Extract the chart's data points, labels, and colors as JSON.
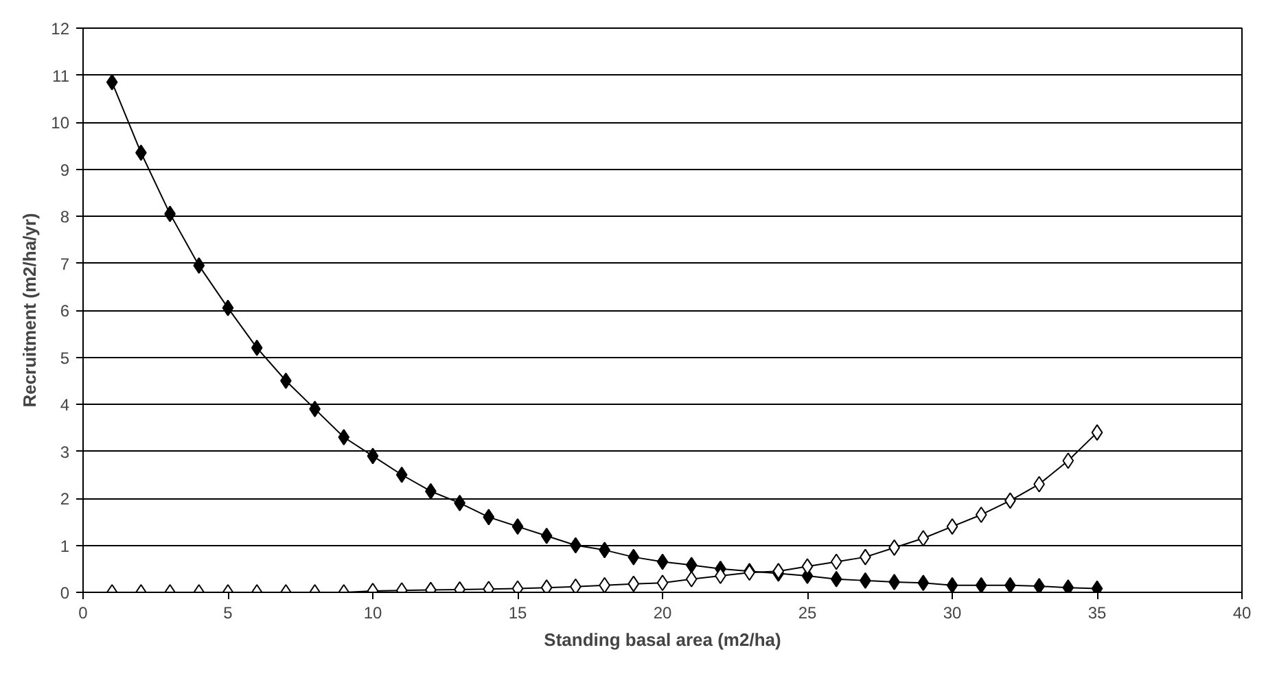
{
  "chart_data": {
    "type": "line",
    "xlabel": "Standing basal area (m2/ha)",
    "ylabel": "Recruitment (m2/ha/yr)",
    "x": [
      1,
      2,
      3,
      4,
      5,
      6,
      7,
      8,
      9,
      10,
      11,
      12,
      13,
      14,
      15,
      16,
      17,
      18,
      19,
      20,
      21,
      22,
      23,
      24,
      25,
      26,
      27,
      28,
      29,
      30,
      31,
      32,
      33,
      34,
      35
    ],
    "series": [
      {
        "color": "#000000",
        "values": [
          10.85,
          9.35,
          8.05,
          6.95,
          6.05,
          5.2,
          4.5,
          3.9,
          3.3,
          2.9,
          2.5,
          2.15,
          1.9,
          1.6,
          1.4,
          1.2,
          1.0,
          0.9,
          0.75,
          0.65,
          0.58,
          0.5,
          0.45,
          0.4,
          0.35,
          0.28,
          0.25,
          0.22,
          0.2,
          0.15,
          0.15,
          0.15,
          0.13,
          0.1,
          0.08
        ]
      },
      {
        "color": "#ffffff",
        "values": [
          0,
          0,
          0,
          0,
          0,
          0,
          0,
          0,
          0,
          0.03,
          0.04,
          0.05,
          0.06,
          0.07,
          0.08,
          0.1,
          0.12,
          0.15,
          0.18,
          0.2,
          0.28,
          0.35,
          0.42,
          0.45,
          0.55,
          0.65,
          0.75,
          0.95,
          1.15,
          1.4,
          1.65,
          1.95,
          2.3,
          2.8,
          3.4
        ]
      }
    ],
    "xlim": [
      0,
      40
    ],
    "ylim": [
      0,
      12
    ],
    "xticks": [
      0,
      5,
      10,
      15,
      20,
      25,
      30,
      35,
      40
    ],
    "yticks": [
      0,
      1,
      2,
      3,
      4,
      5,
      6,
      7,
      8,
      9,
      10,
      11,
      12
    ],
    "grid": "y",
    "marker": "diamond",
    "line_style": "solid"
  }
}
